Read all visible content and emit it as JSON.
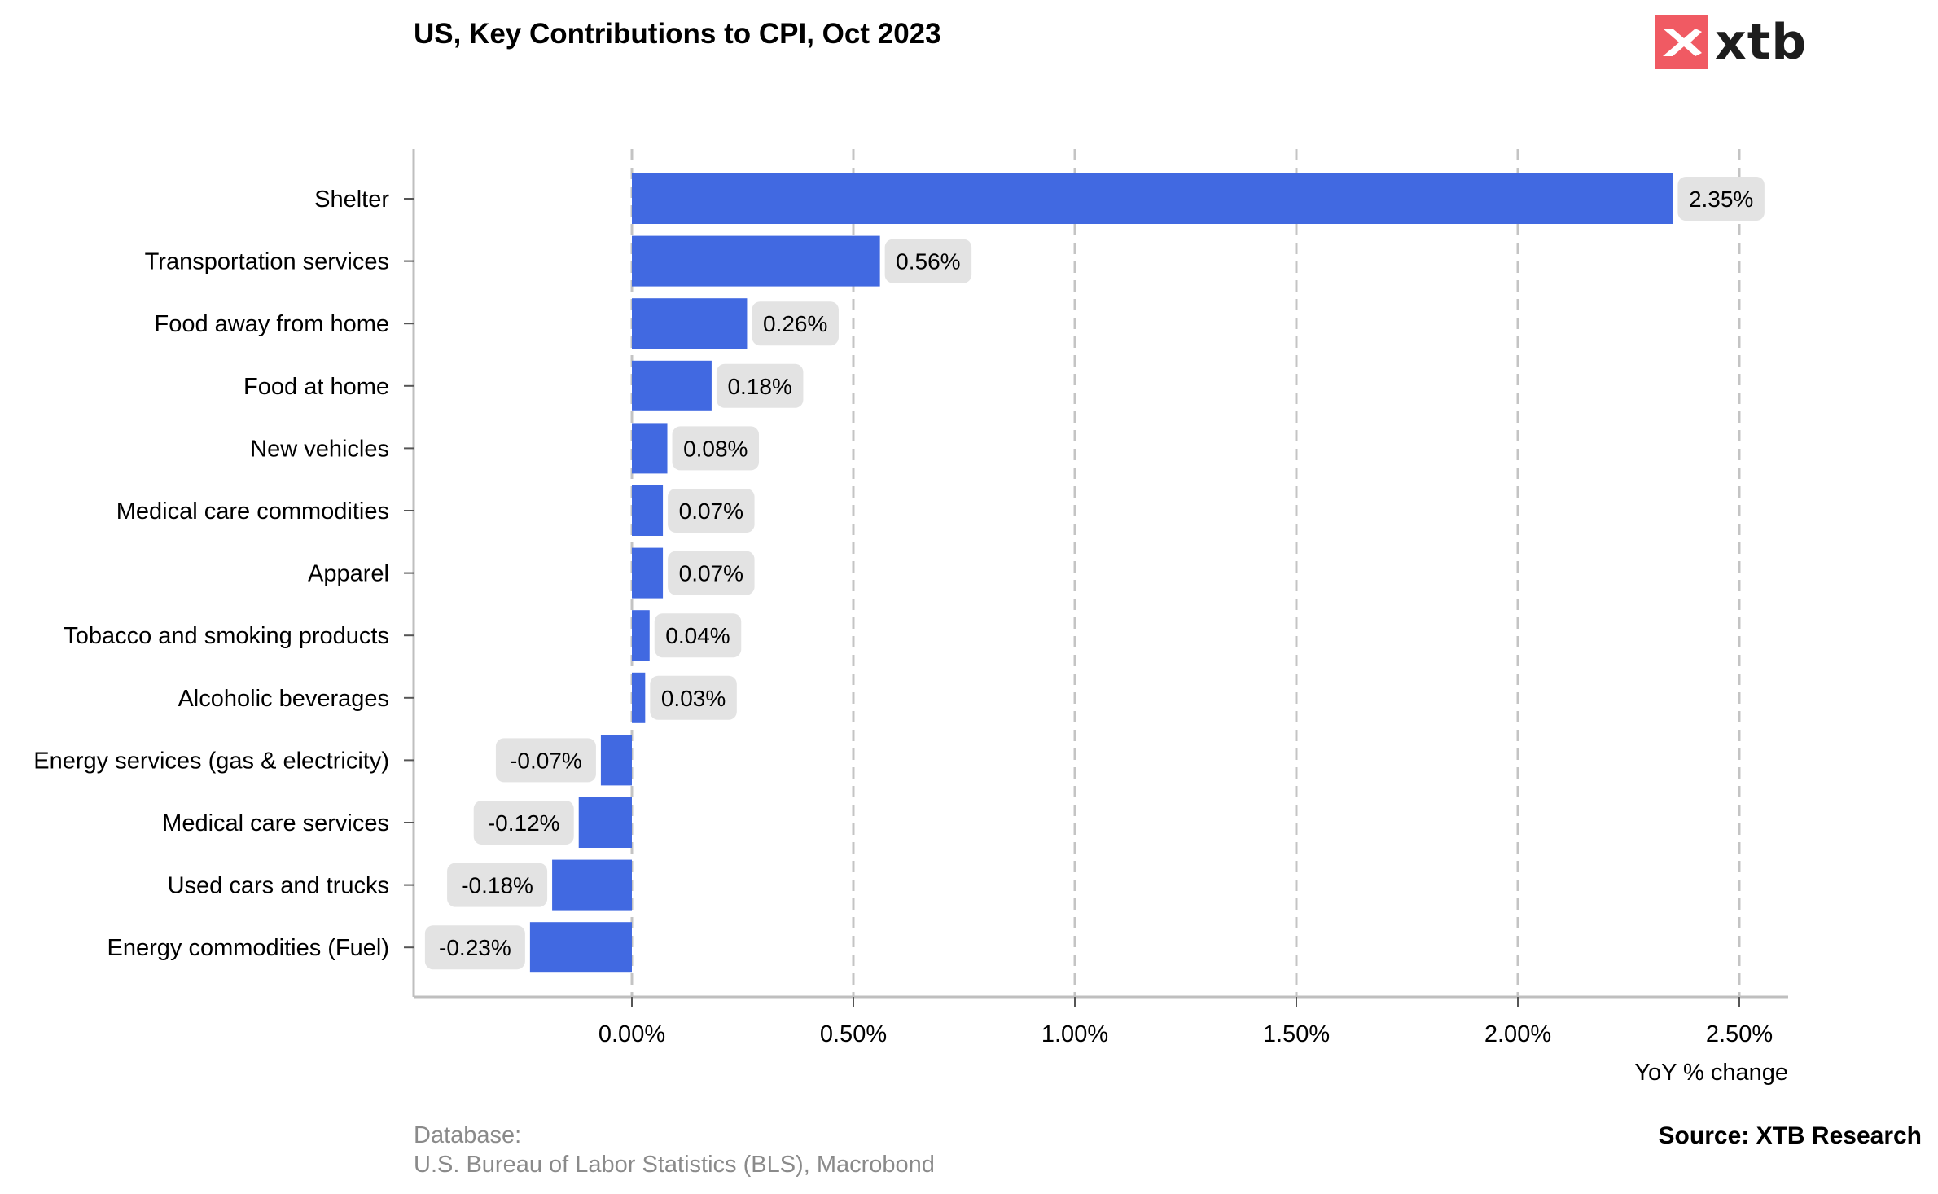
{
  "header": {
    "title": "US, Key Contributions to CPI, Oct 2023",
    "logo_text": "xtb",
    "logo_color": "#f05a63"
  },
  "footer": {
    "database_label": "Database:",
    "database_value": "U.S. Bureau of Labor Statistics (BLS), Macrobond",
    "source": "Source: XTB Research"
  },
  "chart_data": {
    "type": "bar",
    "orientation": "horizontal",
    "title": "US, Key Contributions to CPI, Oct 2023",
    "xlabel": "YoY % change",
    "ylabel": "",
    "categories": [
      "Shelter",
      "Transportation services",
      "Food away from home",
      "Food at home",
      "New vehicles",
      "Medical care commodities",
      "Apparel",
      "Tobacco and smoking products",
      "Alcoholic beverages",
      "Energy services (gas & electricity)",
      "Medical care services",
      "Used cars and trucks",
      "Energy commodities (Fuel)"
    ],
    "values": [
      2.35,
      0.56,
      0.26,
      0.18,
      0.08,
      0.07,
      0.07,
      0.04,
      0.03,
      -0.07,
      -0.12,
      -0.18,
      -0.23
    ],
    "value_labels": [
      "2.35%",
      "0.56%",
      "0.26%",
      "0.18%",
      "0.08%",
      "0.07%",
      "0.07%",
      "0.04%",
      "0.03%",
      "-0.07%",
      "-0.12%",
      "-0.18%",
      "-0.23%"
    ],
    "xticks": [
      0,
      0.5,
      1.0,
      1.5,
      2.0,
      2.5
    ],
    "xtick_labels": [
      "0.00%",
      "0.50%",
      "1.00%",
      "1.50%",
      "2.00%",
      "2.50%"
    ],
    "xlim": [
      -0.49,
      2.61
    ],
    "grid": "vertical dashed",
    "bar_color": "#4169e1",
    "label_bg_color": "#e3e3e3",
    "axis_color": "#bfbfbf",
    "grid_color": "#c4c4c4"
  }
}
